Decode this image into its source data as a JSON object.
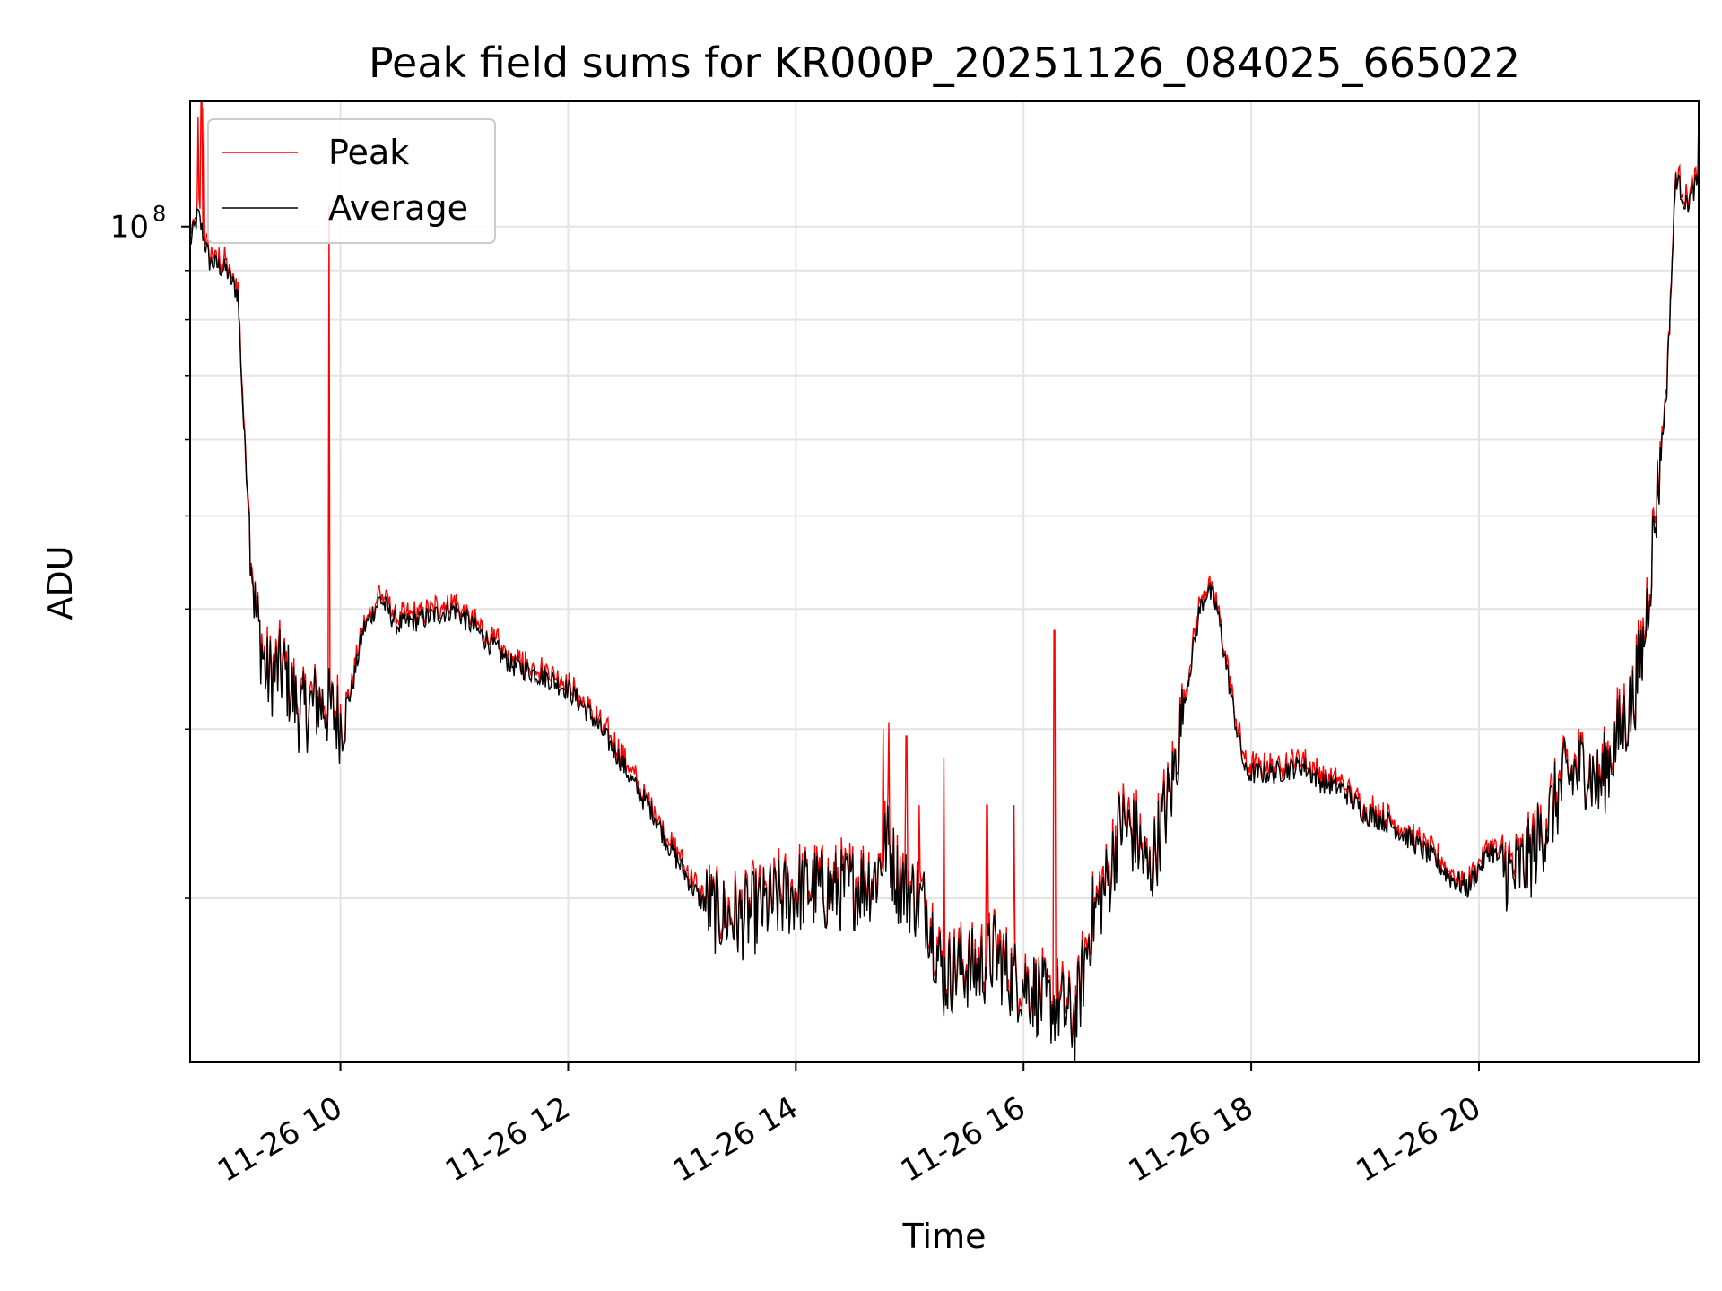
{
  "chart_data": {
    "type": "line",
    "title": "Peak field sums for KR000P_20251126_084025_665022",
    "xlabel": "Time",
    "ylabel": "ADU",
    "yscale": "log",
    "ylim": [
      13500000,
      135000000
    ],
    "xlim": [
      8.68,
      21.93
    ],
    "grid": true,
    "legend": {
      "placement": "upper-left",
      "entries": [
        {
          "name": "Peak",
          "color": "#ff0000"
        },
        {
          "name": "Average",
          "color": "#000000"
        }
      ]
    },
    "x_ticks": [
      {
        "value": 10,
        "label": "11-26 10"
      },
      {
        "value": 12,
        "label": "11-26 12"
      },
      {
        "value": 14,
        "label": "11-26 14"
      },
      {
        "value": 16,
        "label": "11-26 16"
      },
      {
        "value": 18,
        "label": "11-26 18"
      },
      {
        "value": 20,
        "label": "11-26 20"
      }
    ],
    "y_major_ticks": [
      {
        "value": 100000000,
        "label": "10",
        "exponent": "8"
      }
    ],
    "y_minor_ticks": [
      20000000,
      30000000,
      40000000,
      50000000,
      60000000,
      70000000,
      80000000,
      90000000
    ],
    "x_unit": "hour of 2025-11-26",
    "average_series": {
      "name": "Average",
      "color": "#000000",
      "x": [
        8.68,
        8.75,
        8.85,
        9.0,
        9.1,
        9.15,
        9.25,
        9.35,
        9.5,
        9.65,
        9.8,
        9.9,
        10.0,
        10.1,
        10.2,
        10.35,
        10.5,
        10.7,
        10.85,
        11.0,
        11.2,
        11.5,
        11.8,
        12.0,
        12.2,
        12.45,
        12.6,
        12.75,
        12.9,
        13.0,
        13.15,
        13.3,
        13.5,
        13.7,
        13.9,
        14.1,
        14.3,
        14.5,
        14.7,
        14.8,
        14.9,
        15.0,
        15.15,
        15.3,
        15.45,
        15.6,
        15.75,
        15.9,
        16.05,
        16.2,
        16.3,
        16.45,
        16.6,
        16.75,
        16.85,
        17.0,
        17.1,
        17.2,
        17.3,
        17.45,
        17.55,
        17.62,
        17.7,
        17.78,
        17.85,
        17.95,
        18.2,
        18.45,
        18.6,
        18.8,
        19.0,
        19.2,
        19.4,
        19.6,
        19.75,
        19.9,
        20.1,
        20.3,
        20.45,
        20.6,
        20.75,
        20.95,
        21.05,
        21.2,
        21.35,
        21.45,
        21.55,
        21.65,
        21.73,
        21.82,
        21.93
      ],
      "y": [
        96000000,
        103000000,
        92000000,
        90000000,
        85000000,
        62000000,
        40000000,
        34000000,
        34500000,
        31000000,
        32000000,
        31500000,
        30500000,
        33000000,
        38000000,
        41000000,
        38500000,
        39000000,
        39500000,
        40000000,
        38000000,
        35000000,
        34000000,
        33000000,
        31000000,
        28000000,
        26000000,
        24500000,
        22500000,
        21500000,
        20000000,
        19300000,
        19000000,
        19500000,
        20000000,
        20500000,
        20300000,
        20500000,
        21000000,
        23000000,
        20800000,
        20300000,
        19500000,
        16500000,
        17000000,
        16800000,
        17500000,
        16500000,
        16200000,
        15500000,
        15500000,
        14800000,
        19000000,
        21000000,
        24000000,
        23000000,
        21000000,
        23500000,
        26000000,
        34000000,
        40000000,
        42000000,
        40000000,
        35000000,
        31000000,
        27000000,
        27000000,
        27500000,
        26500000,
        26000000,
        24500000,
        24000000,
        23000000,
        22000000,
        21000000,
        20500000,
        22500000,
        21000000,
        22000000,
        24000000,
        26500000,
        27500000,
        26000000,
        29000000,
        32000000,
        37000000,
        50000000,
        68000000,
        113000000,
        105000000,
        112000000
      ]
    },
    "peak_series": {
      "name": "Peak",
      "color": "#ff0000",
      "x": [
        8.75,
        8.78,
        8.8,
        8.85,
        9.9,
        12.1,
        14.77,
        14.82,
        14.97,
        15.08,
        15.3,
        15.68,
        15.92,
        16.27,
        21.93
      ],
      "y": [
        130000000,
        135000000,
        133000000,
        92000000,
        105000000,
        32500000,
        30000000,
        30500000,
        29500000,
        25000000,
        28000000,
        25000000,
        25000000,
        38000000,
        130000000
      ]
    }
  }
}
